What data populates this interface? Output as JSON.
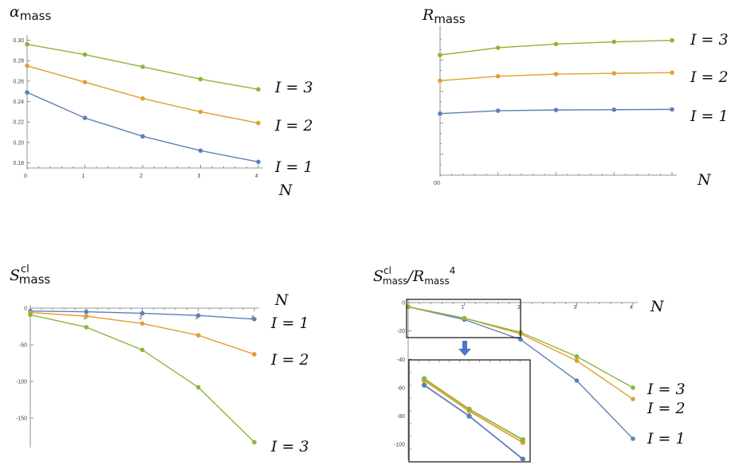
{
  "colors": {
    "I1": "#5b80b8",
    "I2": "#e49d2c",
    "I3": "#8cb53a",
    "arrow": "#4a78c5"
  },
  "chart_data": [
    {
      "id": "alpha",
      "type": "line",
      "title": {
        "base": "α",
        "sub": "mass"
      },
      "xlabel": "N",
      "x": [
        0,
        1,
        2,
        3,
        4
      ],
      "xticks": [
        "0",
        "1",
        "2",
        "3",
        "4"
      ],
      "yticks": [
        "0.18",
        "0.20",
        "0.22",
        "0.24",
        "0.26",
        "0.28",
        "0.30"
      ],
      "ylim": [
        0.175,
        0.302
      ],
      "series": [
        {
          "name": "I = 1",
          "color_key": "I1",
          "values": [
            0.249,
            0.224,
            0.206,
            0.192,
            0.181
          ]
        },
        {
          "name": "I = 2",
          "color_key": "I2",
          "values": [
            0.275,
            0.259,
            0.243,
            0.23,
            0.219
          ]
        },
        {
          "name": "I = 3",
          "color_key": "I3",
          "values": [
            0.296,
            0.286,
            0.274,
            0.262,
            0.252
          ]
        }
      ]
    },
    {
      "id": "rmass",
      "type": "line",
      "title": {
        "base": "R",
        "sub": "mass"
      },
      "xlabel": "N",
      "x": [
        0,
        1,
        2,
        3,
        4
      ],
      "xticks": [
        "0"
      ],
      "yticks": [],
      "ylim": [
        0,
        1
      ],
      "series": [
        {
          "name": "I = 1",
          "color_key": "I1",
          "values": [
            0.42,
            0.44,
            0.445,
            0.447,
            0.449
          ]
        },
        {
          "name": "I = 2",
          "color_key": "I2",
          "values": [
            0.645,
            0.675,
            0.69,
            0.695,
            0.7
          ]
        },
        {
          "name": "I = 3",
          "color_key": "I3",
          "values": [
            0.82,
            0.87,
            0.895,
            0.91,
            0.92
          ]
        }
      ]
    },
    {
      "id": "scl",
      "type": "line",
      "title": {
        "base": "S",
        "sup": "cl",
        "sub": "mass"
      },
      "xlabel": "N",
      "x": [
        0,
        1,
        2,
        3,
        4
      ],
      "xticks": [
        "",
        "1",
        "2",
        "3",
        "4"
      ],
      "yticks": [
        "0",
        "-50",
        "-100",
        "-150"
      ],
      "ylim": [
        -188,
        0
      ],
      "series": [
        {
          "name": "I = 1",
          "color_key": "I1",
          "values": [
            -4,
            -5,
            -7,
            -10,
            -15
          ]
        },
        {
          "name": "I = 2",
          "color_key": "I2",
          "values": [
            -6,
            -11,
            -21,
            -37,
            -63
          ]
        },
        {
          "name": "I = 3",
          "color_key": "I3",
          "values": [
            -9,
            -26,
            -57,
            -108,
            -183
          ]
        }
      ]
    },
    {
      "id": "ratio",
      "type": "line",
      "title": {
        "base": "S",
        "sup": "cl",
        "sub": "mass",
        "div": "/R",
        "sub2": "mass",
        "sup2": "4"
      },
      "xlabel": "N",
      "x": [
        0,
        1,
        2,
        3,
        4
      ],
      "xticks": [
        "",
        "1",
        "2",
        "3",
        "4"
      ],
      "yticks": [
        "0",
        "-20",
        "-40",
        "-60",
        "-80",
        "-100"
      ],
      "ylim": [
        -110,
        0
      ],
      "series": [
        {
          "name": "I = 1",
          "color_key": "I1",
          "values": [
            -3,
            -12,
            -26,
            -55,
            -96
          ]
        },
        {
          "name": "I = 2",
          "color_key": "I2",
          "values": [
            -3,
            -11,
            -22,
            -41,
            -68
          ]
        },
        {
          "name": "I = 3",
          "color_key": "I3",
          "values": [
            -3,
            -11,
            -21,
            -38,
            -60
          ]
        }
      ],
      "inset_series": [
        {
          "color_key": "I1",
          "points": [
            [
              0.8,
              0.17
            ],
            [
              3.15,
              0.505
            ],
            [
              5.95,
              0.97
            ]
          ]
        },
        {
          "color_key": "I2",
          "points": [
            [
              0.8,
              0.12
            ],
            [
              3.15,
              0.45
            ],
            [
              5.95,
              0.79
            ]
          ]
        },
        {
          "color_key": "I3",
          "points": [
            [
              0.8,
              0.1
            ],
            [
              3.15,
              0.43
            ],
            [
              5.95,
              0.76
            ]
          ]
        }
      ]
    }
  ]
}
